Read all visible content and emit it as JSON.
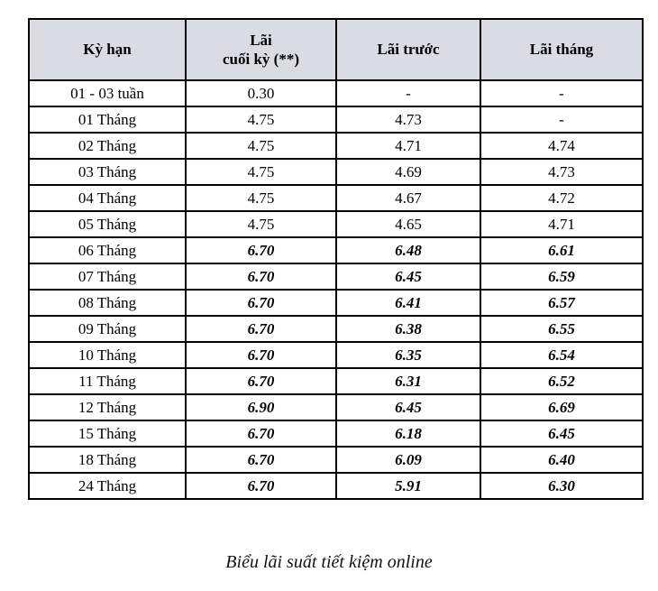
{
  "table": {
    "columns": [
      {
        "lines": [
          "Kỳ hạn"
        ]
      },
      {
        "lines": [
          "Lãi",
          "cuối kỳ (**)"
        ]
      },
      {
        "lines": [
          "Lãi trước"
        ]
      },
      {
        "lines": [
          "Lãi tháng"
        ]
      }
    ],
    "rows": [
      {
        "term": "01 - 03 tuần",
        "end_of_term": "0.30",
        "upfront": "-",
        "monthly": "-",
        "emphasis": false
      },
      {
        "term": "01 Tháng",
        "end_of_term": "4.75",
        "upfront": "4.73",
        "monthly": "-",
        "emphasis": false
      },
      {
        "term": "02 Tháng",
        "end_of_term": "4.75",
        "upfront": "4.71",
        "monthly": "4.74",
        "emphasis": false
      },
      {
        "term": "03 Tháng",
        "end_of_term": "4.75",
        "upfront": "4.69",
        "monthly": "4.73",
        "emphasis": false
      },
      {
        "term": "04 Tháng",
        "end_of_term": "4.75",
        "upfront": "4.67",
        "monthly": "4.72",
        "emphasis": false
      },
      {
        "term": "05 Tháng",
        "end_of_term": "4.75",
        "upfront": "4.65",
        "monthly": "4.71",
        "emphasis": false
      },
      {
        "term": "06 Tháng",
        "end_of_term": "6.70",
        "upfront": "6.48",
        "monthly": "6.61",
        "emphasis": true
      },
      {
        "term": "07 Tháng",
        "end_of_term": "6.70",
        "upfront": "6.45",
        "monthly": "6.59",
        "emphasis": true
      },
      {
        "term": "08 Tháng",
        "end_of_term": "6.70",
        "upfront": "6.41",
        "monthly": "6.57",
        "emphasis": true
      },
      {
        "term": "09 Tháng",
        "end_of_term": "6.70",
        "upfront": "6.38",
        "monthly": "6.55",
        "emphasis": true
      },
      {
        "term": "10 Tháng",
        "end_of_term": "6.70",
        "upfront": "6.35",
        "monthly": "6.54",
        "emphasis": true
      },
      {
        "term": "11 Tháng",
        "end_of_term": "6.70",
        "upfront": "6.31",
        "monthly": "6.52",
        "emphasis": true
      },
      {
        "term": "12 Tháng",
        "end_of_term": "6.90",
        "upfront": "6.45",
        "monthly": "6.69",
        "emphasis": true
      },
      {
        "term": "15 Tháng",
        "end_of_term": "6.70",
        "upfront": "6.18",
        "monthly": "6.45",
        "emphasis": true
      },
      {
        "term": "18 Tháng",
        "end_of_term": "6.70",
        "upfront": "6.09",
        "monthly": "6.40",
        "emphasis": true
      },
      {
        "term": "24 Tháng",
        "end_of_term": "6.70",
        "upfront": "5.91",
        "monthly": "6.30",
        "emphasis": true
      }
    ]
  },
  "caption": {
    "text": "Biểu lãi suất tiết kiệm online"
  },
  "colors": {
    "header_background": "#d9dde3",
    "border": "#000000",
    "text": "#000000"
  }
}
